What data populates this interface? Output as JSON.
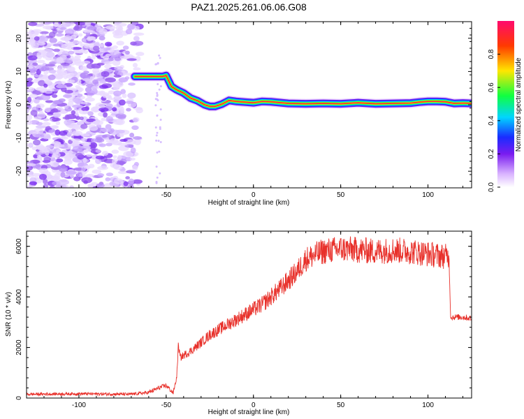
{
  "title": "PAZ1.2025.261.06.06.G08",
  "chart_data": [
    {
      "type": "heatmap",
      "xlabel": "Height of straight line (km)",
      "ylabel": "Frequency (Hz)",
      "xlim": [
        -130,
        125
      ],
      "ylim": [
        -25,
        25
      ],
      "xticks": [
        -100,
        -50,
        0,
        50,
        100
      ],
      "yticks": [
        -20,
        -10,
        0,
        10,
        20
      ],
      "ridge": {
        "x": [
          -68,
          -60,
          -52,
          -50,
          -47,
          -44,
          -40,
          -36,
          -32,
          -28,
          -25,
          -22,
          -18,
          -14,
          -10,
          -5,
          0,
          5,
          10,
          20,
          30,
          40,
          50,
          60,
          70,
          80,
          90,
          95,
          100,
          105,
          110,
          115,
          120,
          125
        ],
        "frequency": [
          8.5,
          8.5,
          8.5,
          8.8,
          5.5,
          4.5,
          3.5,
          2.0,
          1.2,
          0.0,
          -0.5,
          -0.5,
          0.2,
          1.3,
          1.0,
          0.8,
          0.6,
          1.0,
          0.9,
          0.4,
          0.3,
          0.4,
          0.3,
          0.6,
          0.3,
          0.4,
          0.5,
          0.8,
          1.0,
          1.0,
          0.9,
          0.4,
          0.5,
          0.4
        ]
      },
      "noise_region_x": [
        -130,
        -65
      ],
      "colorbar": {
        "label": "Normalized spectral amplitude",
        "ticks": [
          "0.0",
          "0.2",
          "0.4",
          "0.6",
          "0.8"
        ],
        "range": [
          0,
          1
        ]
      }
    },
    {
      "type": "line",
      "xlabel": "Height of straight line (km)",
      "ylabel": "SNR (10 * v/v)",
      "xlim": [
        -130,
        125
      ],
      "ylim": [
        0,
        6600
      ],
      "xticks": [
        -100,
        -50,
        0,
        50,
        100
      ],
      "yticks": [
        0,
        2000,
        4000,
        6000
      ],
      "series": [
        {
          "name": "SNR",
          "color": "#e8302a",
          "x": [
            -130,
            -100,
            -70,
            -60,
            -55,
            -50,
            -46,
            -44,
            -43,
            -42,
            -35,
            -25,
            -15,
            -5,
            5,
            15,
            25,
            30,
            40,
            50,
            60,
            70,
            80,
            90,
            100,
            110,
            112,
            113,
            120,
            125
          ],
          "values": [
            150,
            170,
            150,
            220,
            380,
            500,
            200,
            800,
            2100,
            1600,
            1900,
            2500,
            2900,
            3300,
            3700,
            4300,
            5000,
            5500,
            5800,
            5900,
            5850,
            5800,
            5850,
            5800,
            5700,
            5600,
            5650,
            3200,
            3200,
            3150
          ]
        }
      ]
    }
  ]
}
